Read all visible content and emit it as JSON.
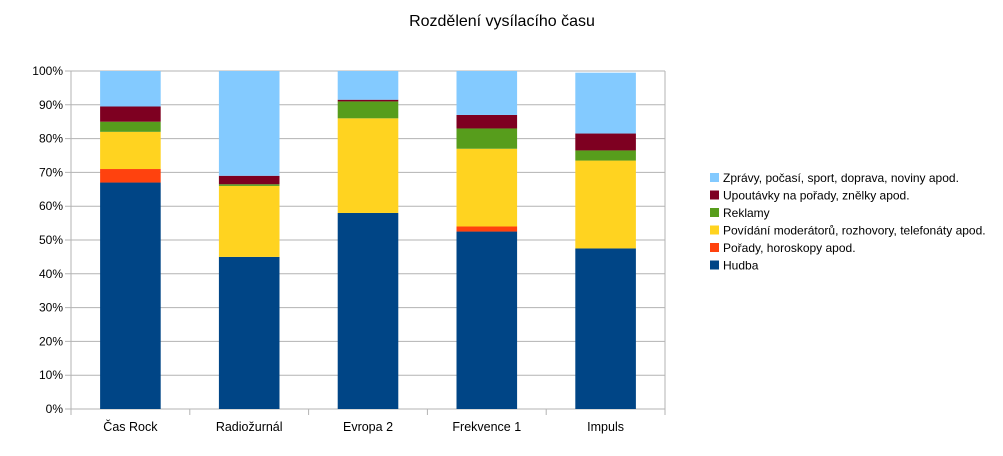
{
  "chart_data": {
    "type": "bar",
    "stacked": true,
    "normalized_percent": true,
    "title": "Rozdělení vysílacího času",
    "xlabel": "",
    "ylabel": "",
    "ylim": [
      0,
      100
    ],
    "yticks": [
      "0%",
      "10%",
      "20%",
      "30%",
      "40%",
      "50%",
      "60%",
      "70%",
      "80%",
      "90%",
      "100%"
    ],
    "grid": true,
    "legend_position": "right",
    "categories": [
      "Čas Rock",
      "Radiožurnál",
      "Evropa 2",
      "Frekvence 1",
      "Impuls"
    ],
    "series": [
      {
        "name": "Hudba",
        "color": "#004586",
        "values": [
          67,
          45,
          58,
          52.5,
          47.5
        ]
      },
      {
        "name": "Pořady, horoskopy apod.",
        "color": "#ff420e",
        "values": [
          4,
          0,
          0,
          1.5,
          0
        ]
      },
      {
        "name": "Povídání moderátorů, rozhovory, telefonáty apod.",
        "color": "#ffd320",
        "values": [
          11,
          21,
          28,
          23,
          26
        ]
      },
      {
        "name": "Reklamy",
        "color": "#579d1c",
        "values": [
          3,
          0.5,
          5,
          6,
          3
        ]
      },
      {
        "name": "Upoutávky na pořady, znělky apod.",
        "color": "#7e0021",
        "values": [
          4.5,
          2.5,
          0.5,
          4,
          5
        ]
      },
      {
        "name": "Zprávy, počasí, sport, doprava, noviny apod.",
        "color": "#83caff",
        "values": [
          10.5,
          31,
          8.5,
          13,
          18
        ]
      }
    ]
  }
}
